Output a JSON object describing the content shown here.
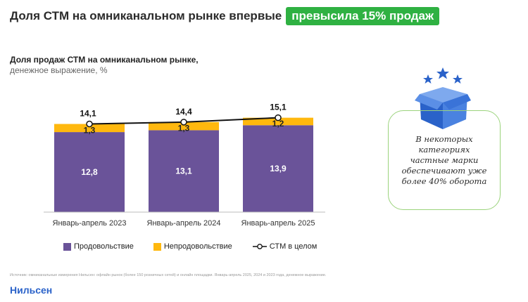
{
  "headline": {
    "text": "Доля СТМ на омниканальном рынке впервые",
    "highlight": "превысила 15% продаж"
  },
  "subtitle": {
    "line1": "Доля продаж СТМ на омниканальном рынке,",
    "line2": "денежное выражение, %"
  },
  "chart_data": {
    "type": "bar",
    "stacked": true,
    "categories": [
      "Январь-апрель 2023",
      "Январь-апрель 2024",
      "Январь-апрель 2025"
    ],
    "series": [
      {
        "name": "Продовольствие",
        "values": [
          12.8,
          13.1,
          13.9
        ],
        "labels": [
          "12,8",
          "13,1",
          "13,9"
        ],
        "color": "#6a5399"
      },
      {
        "name": "Непродовольствие",
        "values": [
          1.3,
          1.3,
          1.2
        ],
        "labels": [
          "1,3",
          "1,3",
          "1,2"
        ],
        "color": "#ffb80e"
      }
    ],
    "line": {
      "name": "СТМ в целом",
      "values": [
        14.1,
        14.4,
        15.1
      ],
      "labels": [
        "14,1",
        "14,4",
        "15,1"
      ],
      "color": "#111111"
    }
  },
  "legend": {
    "food": "Продовольствие",
    "nonfood": "Непродовольствие",
    "total": "СТМ в целом"
  },
  "callout": {
    "text": "В некоторых категориях частные марки обеспечивают уже более 40% оборота"
  },
  "source": "Источник: омниканальные измерения Нильсен: офлайн рынок (более 150 розничных сетей) и онлайн площадки. Январь-апрель 2025, 2024 и 2023 года, денежное выражение.",
  "logo": "Нильсен"
}
